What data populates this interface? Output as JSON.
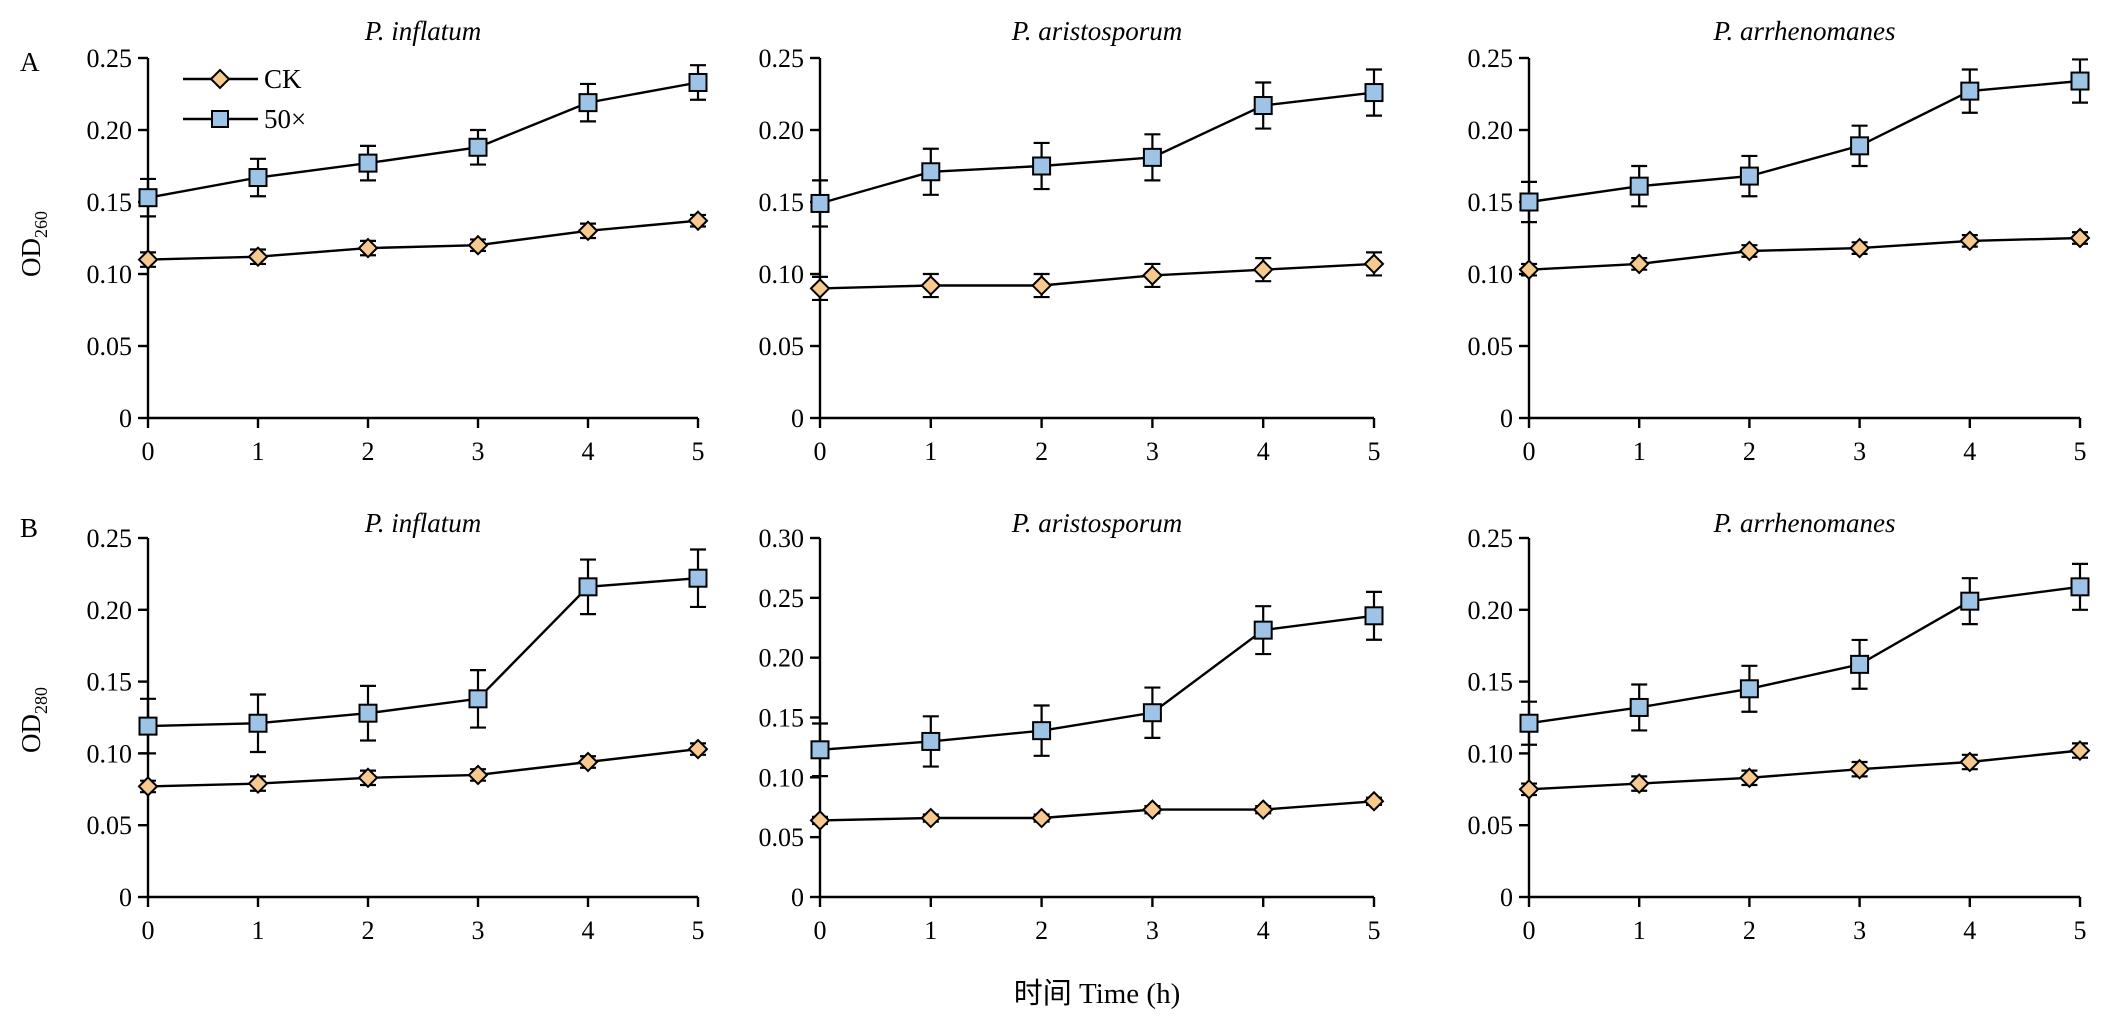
{
  "figure": {
    "row_letters": [
      "A",
      "B"
    ],
    "ylabels": [
      {
        "main": "OD",
        "sub": "260"
      },
      {
        "main": "OD",
        "sub": "280"
      }
    ],
    "xlabel": "时间 Time (h)",
    "legend": {
      "entries": [
        {
          "label": "CK",
          "marker": "diamond"
        },
        {
          "label": "50×",
          "marker": "square"
        }
      ]
    },
    "colors": {
      "ck_marker": "#F7C98E",
      "treated_marker": "#9DC3E6",
      "line": "#000000"
    }
  },
  "chart_data": [
    {
      "type": "line",
      "row": "A",
      "title": "P. inflatum",
      "x": [
        0,
        1,
        2,
        3,
        4,
        5
      ],
      "ylim": [
        0,
        0.25
      ],
      "yticks": [
        "0",
        "0.05",
        "0.10",
        "0.15",
        "0.20",
        "0.25"
      ],
      "series": [
        {
          "name": "CK",
          "values": [
            0.11,
            0.112,
            0.118,
            0.12,
            0.13,
            0.137
          ],
          "errors": [
            0.005,
            0.005,
            0.005,
            0.004,
            0.005,
            0.004
          ]
        },
        {
          "name": "50×",
          "values": [
            0.153,
            0.167,
            0.177,
            0.188,
            0.219,
            0.233
          ],
          "errors": [
            0.013,
            0.013,
            0.012,
            0.012,
            0.013,
            0.012
          ]
        }
      ]
    },
    {
      "type": "line",
      "row": "A",
      "title": "P. aristosporum",
      "x": [
        0,
        1,
        2,
        3,
        4,
        5
      ],
      "ylim": [
        0,
        0.25
      ],
      "yticks": [
        "0",
        "0.05",
        "0.10",
        "0.15",
        "0.20",
        "0.25"
      ],
      "series": [
        {
          "name": "CK",
          "values": [
            0.09,
            0.092,
            0.092,
            0.099,
            0.103,
            0.107
          ],
          "errors": [
            0.008,
            0.008,
            0.008,
            0.008,
            0.008,
            0.008
          ]
        },
        {
          "name": "50×",
          "values": [
            0.149,
            0.171,
            0.175,
            0.181,
            0.217,
            0.226
          ],
          "errors": [
            0.016,
            0.016,
            0.016,
            0.016,
            0.016,
            0.016
          ]
        }
      ]
    },
    {
      "type": "line",
      "row": "A",
      "title": "P. arrhenomanes",
      "x": [
        0,
        1,
        2,
        3,
        4,
        5
      ],
      "ylim": [
        0,
        0.25
      ],
      "yticks": [
        "0",
        "0.05",
        "0.10",
        "0.15",
        "0.20",
        "0.25"
      ],
      "series": [
        {
          "name": "CK",
          "values": [
            0.103,
            0.107,
            0.116,
            0.118,
            0.123,
            0.125
          ],
          "errors": [
            0.004,
            0.004,
            0.004,
            0.004,
            0.004,
            0.004
          ]
        },
        {
          "name": "50×",
          "values": [
            0.15,
            0.161,
            0.168,
            0.189,
            0.227,
            0.234
          ],
          "errors": [
            0.014,
            0.014,
            0.014,
            0.014,
            0.015,
            0.015
          ]
        }
      ]
    },
    {
      "type": "line",
      "row": "B",
      "title": "P. inflatum",
      "x": [
        0,
        1,
        2,
        3,
        4,
        5
      ],
      "ylim": [
        0,
        0.25
      ],
      "yticks": [
        "0",
        "0.05",
        "0.10",
        "0.15",
        "0.20",
        "0.25"
      ],
      "series": [
        {
          "name": "CK",
          "values": [
            0.077,
            0.079,
            0.083,
            0.085,
            0.094,
            0.103
          ],
          "errors": [
            0.004,
            0.005,
            0.005,
            0.004,
            0.004,
            0.004
          ]
        },
        {
          "name": "50×",
          "values": [
            0.119,
            0.121,
            0.128,
            0.138,
            0.216,
            0.222
          ],
          "errors": [
            0.019,
            0.02,
            0.019,
            0.02,
            0.019,
            0.02
          ]
        }
      ]
    },
    {
      "type": "line",
      "row": "B",
      "title": "P. aristosporum",
      "x": [
        0,
        1,
        2,
        3,
        4,
        5
      ],
      "ylim": [
        0,
        0.3
      ],
      "yticks": [
        "0",
        "0.05",
        "0.10",
        "0.15",
        "0.20",
        "0.25",
        "0.30"
      ],
      "series": [
        {
          "name": "CK",
          "values": [
            0.064,
            0.066,
            0.066,
            0.073,
            0.073,
            0.08
          ],
          "errors": [
            0.003,
            0.003,
            0.003,
            0.003,
            0.003,
            0.003
          ]
        },
        {
          "name": "50×",
          "values": [
            0.123,
            0.13,
            0.139,
            0.154,
            0.223,
            0.235
          ],
          "errors": [
            0.022,
            0.021,
            0.021,
            0.021,
            0.02,
            0.02
          ]
        }
      ]
    },
    {
      "type": "line",
      "row": "B",
      "title": "P. arrhenomanes",
      "x": [
        0,
        1,
        2,
        3,
        4,
        5
      ],
      "ylim": [
        0,
        0.25
      ],
      "yticks": [
        "0",
        "0.05",
        "0.10",
        "0.15",
        "0.20",
        "0.25"
      ],
      "series": [
        {
          "name": "CK",
          "values": [
            0.075,
            0.079,
            0.083,
            0.089,
            0.094,
            0.102
          ],
          "errors": [
            0.004,
            0.005,
            0.005,
            0.005,
            0.005,
            0.005
          ]
        },
        {
          "name": "50×",
          "values": [
            0.121,
            0.132,
            0.145,
            0.162,
            0.206,
            0.216
          ],
          "errors": [
            0.015,
            0.016,
            0.016,
            0.017,
            0.016,
            0.016
          ]
        }
      ]
    }
  ]
}
